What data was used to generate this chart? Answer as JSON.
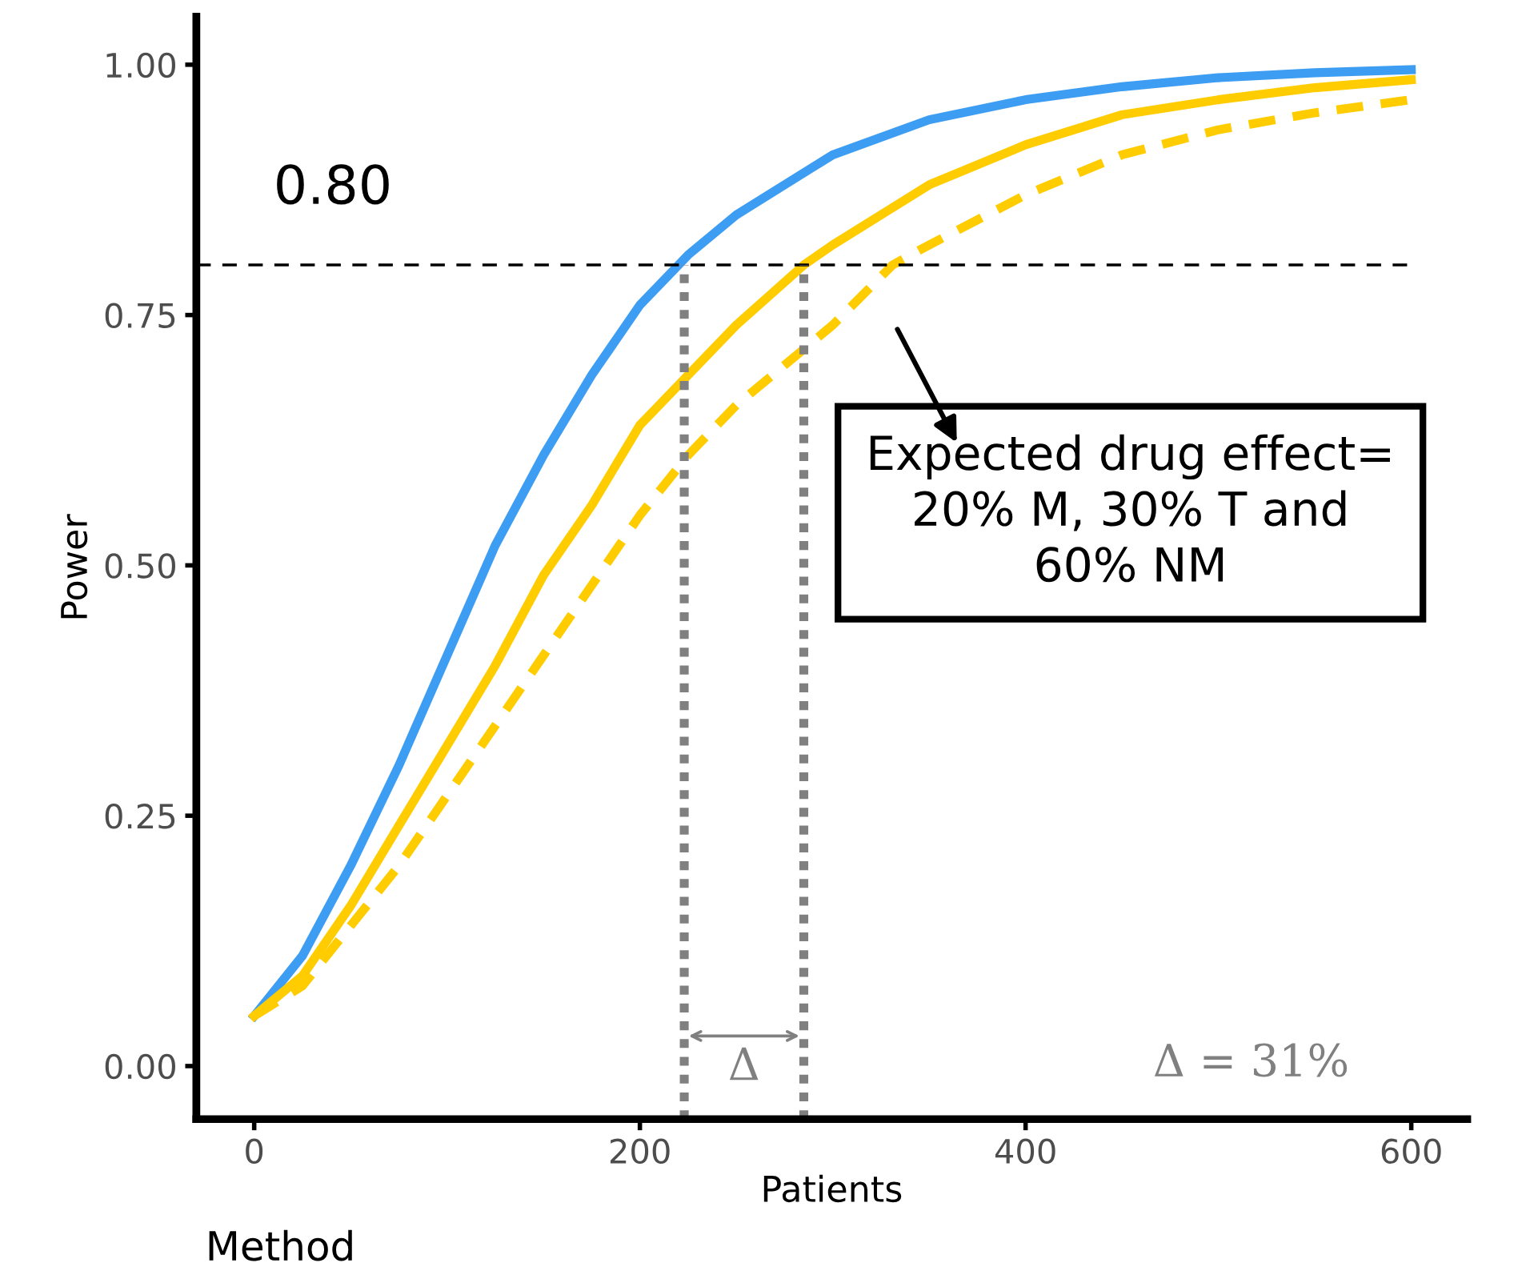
{
  "chart_data": {
    "type": "line",
    "xlabel": "Patients",
    "ylabel": "Power",
    "xlim": [
      -30,
      629
    ],
    "ylim": [
      -0.053,
      1.048
    ],
    "xticks": [
      0,
      200,
      400,
      600
    ],
    "yticks": [
      {
        "value": 0,
        "label": "0.00"
      },
      {
        "value": 0.25,
        "label": "0.25"
      },
      {
        "value": 0.5,
        "label": "0.50"
      },
      {
        "value": 0.75,
        "label": "0.75"
      },
      {
        "value": 1,
        "label": "1.00"
      }
    ],
    "grid": false,
    "marker": "none",
    "series": [
      {
        "color": "#3d9df3",
        "line_style": "solid",
        "x": [
          0,
          25,
          50,
          75,
          100,
          125,
          150,
          175,
          200,
          225,
          250,
          300,
          350,
          400,
          450,
          500,
          550,
          600
        ],
        "values": [
          0.05,
          0.11,
          0.2,
          0.3,
          0.41,
          0.52,
          0.61,
          0.69,
          0.76,
          0.81,
          0.85,
          0.91,
          0.945,
          0.965,
          0.978,
          0.987,
          0.992,
          0.995
        ]
      },
      {
        "color": "#ffcc00",
        "line_style": "solid",
        "x": [
          0,
          25,
          50,
          75,
          100,
          125,
          150,
          175,
          200,
          225,
          250,
          285,
          300,
          350,
          400,
          450,
          500,
          550,
          600
        ],
        "values": [
          0.05,
          0.09,
          0.16,
          0.24,
          0.32,
          0.4,
          0.49,
          0.56,
          0.64,
          0.69,
          0.74,
          0.8,
          0.82,
          0.88,
          0.92,
          0.95,
          0.965,
          0.977,
          0.985
        ]
      },
      {
        "color": "#ffcc00",
        "line_style": "dashed",
        "x": [
          0,
          25,
          50,
          75,
          100,
          125,
          150,
          175,
          200,
          225,
          250,
          300,
          331,
          350,
          400,
          450,
          500,
          550,
          600
        ],
        "values": [
          0.05,
          0.08,
          0.14,
          0.2,
          0.27,
          0.34,
          0.41,
          0.48,
          0.55,
          0.61,
          0.66,
          0.74,
          0.8,
          0.82,
          0.87,
          0.91,
          0.935,
          0.952,
          0.965
        ]
      }
    ],
    "ref_lines": [
      {
        "axis": "y",
        "value": 0.8,
        "label": "0.80",
        "color": "#000000",
        "line_style": "dashed"
      },
      {
        "axis": "x",
        "value": 223,
        "color": "#808080",
        "line_style": "dotted"
      },
      {
        "axis": "x",
        "value": 285,
        "color": "#808080",
        "line_style": "dotted"
      }
    ],
    "annotations": [
      "Expected drug effect=\n20% M, 30% T and\n60% NM",
      "Δ",
      "Δ = 31%",
      "Method"
    ]
  }
}
